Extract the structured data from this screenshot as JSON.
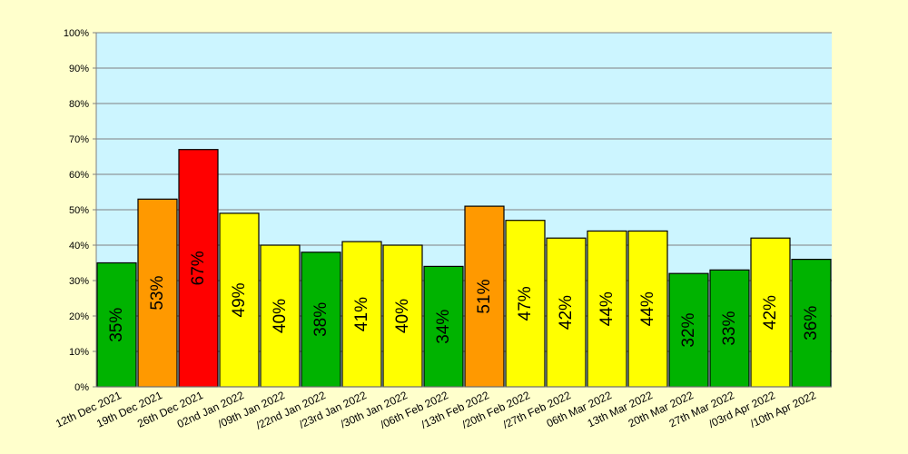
{
  "chart_data": {
    "type": "bar",
    "title": "",
    "xlabel": "",
    "ylabel": "",
    "ylim": [
      0,
      100
    ],
    "yticks": [
      "0%",
      "10%",
      "20%",
      "30%",
      "40%",
      "50%",
      "60%",
      "70%",
      "80%",
      "90%",
      "100%"
    ],
    "grid": true,
    "legend": "none",
    "plot_background": "#ccf5ff",
    "page_background": "#ffffcc",
    "categories": [
      "12th Dec 2021",
      "19th Dec 2021",
      "26th Dec 2021",
      "02nd Jan 2022",
      "/09th Jan 2022",
      "/22nd Jan 2022",
      "/23rd Jan 2022",
      "/30th Jan 2022",
      "/06th Feb 2022",
      "/13th Feb 2022",
      "/20th Feb 2022",
      "/27th Feb 2022",
      "06th Mar 2022",
      "13th Mar 2022",
      "20th Mar 2022",
      "27th Mar 2022",
      "/03rd Apr 2022",
      "/10th Apr 2022"
    ],
    "values": [
      35,
      53,
      67,
      49,
      40,
      38,
      41,
      40,
      34,
      51,
      47,
      42,
      44,
      44,
      32,
      33,
      42,
      36
    ],
    "data_labels": [
      "35%",
      "53%",
      "67%",
      "49%",
      "40%",
      "38%",
      "41%",
      "40%",
      "34%",
      "51%",
      "47%",
      "42%",
      "44%",
      "44%",
      "32%",
      "33%",
      "42%",
      "36%"
    ],
    "bar_colors": [
      "#00b300",
      "#ff9900",
      "#ff0000",
      "#ffff00",
      "#ffff00",
      "#00b300",
      "#ffff00",
      "#ffff00",
      "#00b300",
      "#ff9900",
      "#ffff00",
      "#ffff00",
      "#ffff00",
      "#ffff00",
      "#00b300",
      "#00b300",
      "#ffff00",
      "#00b300"
    ]
  }
}
